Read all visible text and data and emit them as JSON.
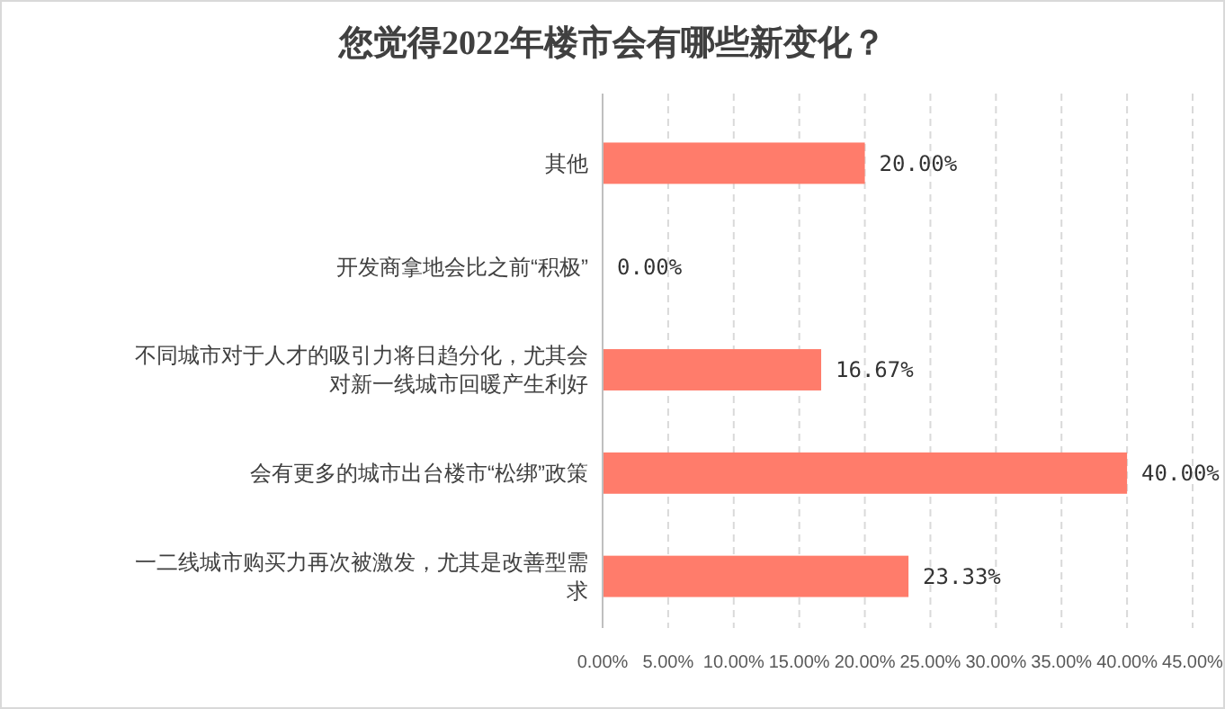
{
  "chart_data": {
    "type": "bar",
    "orientation": "horizontal",
    "title": "您觉得2022年楼市会有哪些新变化？",
    "categories": [
      "其他",
      "开发商拿地会比之前“积极”",
      "不同城市对于人才的吸引力将日趋分化，尤其会对新一线城市回暖产生利好",
      "会有更多的城市出台楼市“松绑”政策",
      "一二线城市购买力再次被激发，尤其是改善型需求"
    ],
    "values": [
      20,
      0,
      16.67,
      40,
      23.33
    ],
    "value_labels": [
      "20.00%",
      "0.00%",
      "16.67%",
      "40.00%",
      "23.33%"
    ],
    "color": "#ff7c6b",
    "xlim": [
      0,
      45
    ],
    "xticks": [
      {
        "value": 0,
        "label": "0.00%"
      },
      {
        "value": 5,
        "label": "5.00%"
      },
      {
        "value": 10,
        "label": "10.00%"
      },
      {
        "value": 15,
        "label": "15.00%"
      },
      {
        "value": 20,
        "label": "20.00%"
      },
      {
        "value": 25,
        "label": "25.00%"
      },
      {
        "value": 30,
        "label": "30.00%"
      },
      {
        "value": 35,
        "label": "35.00%"
      },
      {
        "value": 40,
        "label": "40.00%"
      },
      {
        "value": 45,
        "label": "45.00%"
      }
    ],
    "grid": "x"
  }
}
